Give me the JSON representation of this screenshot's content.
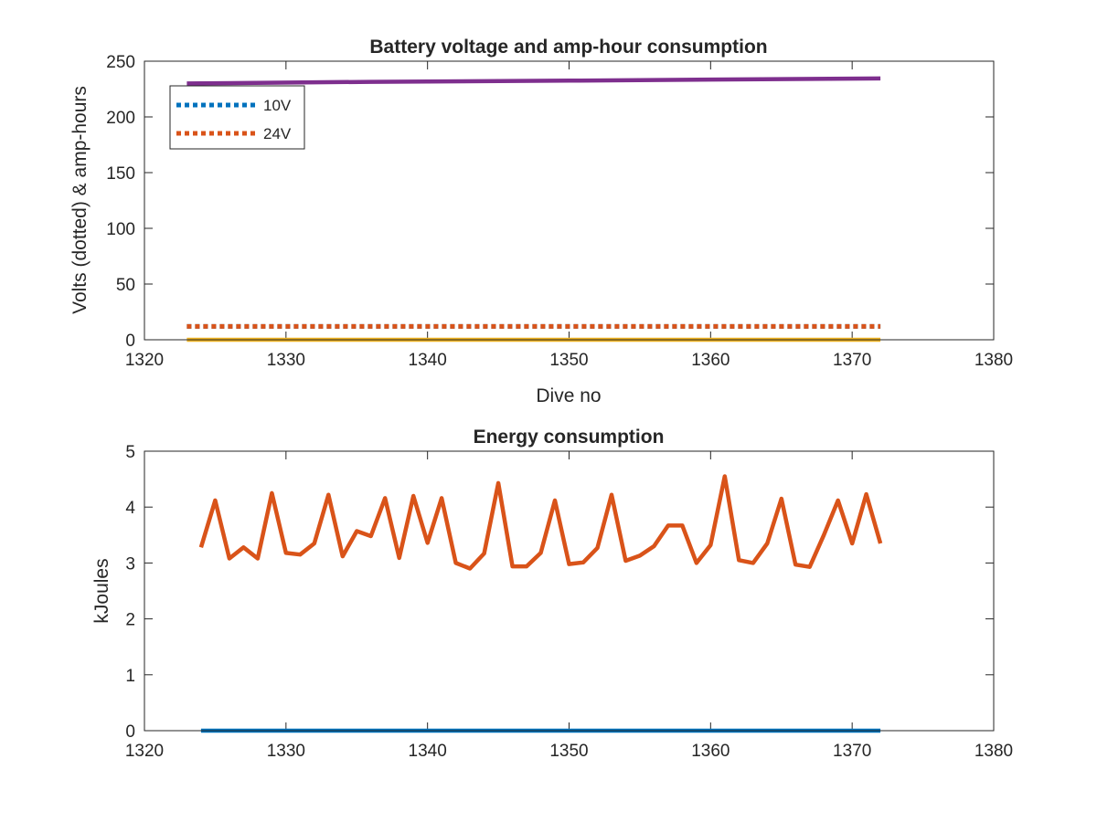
{
  "chart_data": [
    {
      "type": "line",
      "title": "Battery voltage and amp-hour consumption",
      "xlabel": "Dive no",
      "ylabel": "Volts (dotted) & amp-hours",
      "xlim": [
        1320,
        1380
      ],
      "ylim": [
        0,
        250
      ],
      "xticks": [
        "1320",
        "1330",
        "1340",
        "1350",
        "1360",
        "1370",
        "1380"
      ],
      "yticks": [
        "0",
        "50",
        "100",
        "150",
        "200",
        "250"
      ],
      "grid": false,
      "legend_position": "top-left",
      "series": [
        {
          "name": "10V",
          "style": "dotted",
          "color": "#0072BD",
          "x": [
            1323,
            1372
          ],
          "y": [
            12,
            12
          ]
        },
        {
          "name": "24V",
          "style": "dotted",
          "color": "#D95319",
          "x": [
            1323,
            1372
          ],
          "y": [
            12,
            12
          ]
        },
        {
          "style": "solid",
          "color": "#EDB120",
          "x": [
            1323,
            1372
          ],
          "y": [
            0,
            0
          ]
        },
        {
          "style": "solid",
          "color": "#7E2F8E",
          "x": [
            1323,
            1336,
            1350,
            1360,
            1372
          ],
          "y": [
            230,
            231.5,
            232.5,
            233.5,
            234.5
          ]
        }
      ]
    },
    {
      "type": "line",
      "title": "Energy consumption",
      "xlabel": "",
      "ylabel": "kJoules",
      "xlim": [
        1320,
        1380
      ],
      "ylim": [
        0,
        5
      ],
      "xticks": [
        "1320",
        "1330",
        "1340",
        "1350",
        "1360",
        "1370",
        "1380"
      ],
      "yticks": [
        "0",
        "1",
        "2",
        "3",
        "4",
        "5"
      ],
      "grid": false,
      "series": [
        {
          "style": "solid",
          "color": "#0072BD",
          "x": [
            1324,
            1372
          ],
          "y": [
            0,
            0
          ]
        },
        {
          "style": "solid",
          "color": "#D95319",
          "x": [
            1324,
            1325,
            1326,
            1327,
            1328,
            1329,
            1330,
            1331,
            1332,
            1333,
            1334,
            1335,
            1336,
            1337,
            1338,
            1339,
            1340,
            1341,
            1342,
            1343,
            1344,
            1345,
            1346,
            1347,
            1348,
            1349,
            1350,
            1351,
            1352,
            1353,
            1354,
            1355,
            1356,
            1357,
            1358,
            1359,
            1360,
            1361,
            1362,
            1363,
            1364,
            1365,
            1366,
            1367,
            1368,
            1369,
            1370,
            1371,
            1372
          ],
          "y": [
            3.28,
            4.12,
            3.08,
            3.28,
            3.08,
            4.25,
            3.18,
            3.15,
            3.35,
            4.22,
            3.12,
            3.57,
            3.48,
            4.16,
            3.09,
            4.2,
            3.36,
            4.16,
            3.0,
            2.9,
            3.17,
            4.43,
            2.94,
            2.94,
            3.18,
            4.12,
            2.98,
            3.01,
            3.27,
            4.22,
            3.04,
            3.13,
            3.3,
            3.67,
            3.67,
            3.0,
            3.32,
            4.55,
            3.05,
            3.0,
            3.35,
            4.15,
            2.97,
            2.93,
            3.5,
            4.12,
            3.35,
            4.23,
            3.35
          ]
        }
      ]
    }
  ]
}
